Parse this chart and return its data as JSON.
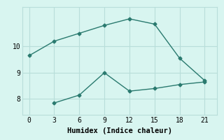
{
  "line1_x": [
    0,
    3,
    6,
    9,
    12,
    15,
    18,
    21
  ],
  "line1_y": [
    9.65,
    10.2,
    10.5,
    10.8,
    11.05,
    10.85,
    9.55,
    8.7
  ],
  "line2_x": [
    3,
    6,
    9,
    12,
    15,
    18,
    21
  ],
  "line2_y": [
    7.85,
    8.15,
    9.0,
    8.3,
    8.4,
    8.55,
    8.65
  ],
  "line_color": "#2a7a6f",
  "background_color": "#d8f5f0",
  "grid_color": "#b8deda",
  "xlabel": "Humidex (Indice chaleur)",
  "xticks": [
    0,
    3,
    6,
    9,
    12,
    15,
    18,
    21
  ],
  "yticks": [
    8,
    9,
    10
  ],
  "xlim": [
    -0.8,
    22.5
  ],
  "ylim": [
    7.4,
    11.5
  ],
  "xlabel_fontsize": 7.5,
  "tick_fontsize": 7,
  "marker": "D",
  "marker_size": 2.5,
  "linewidth": 1.0
}
